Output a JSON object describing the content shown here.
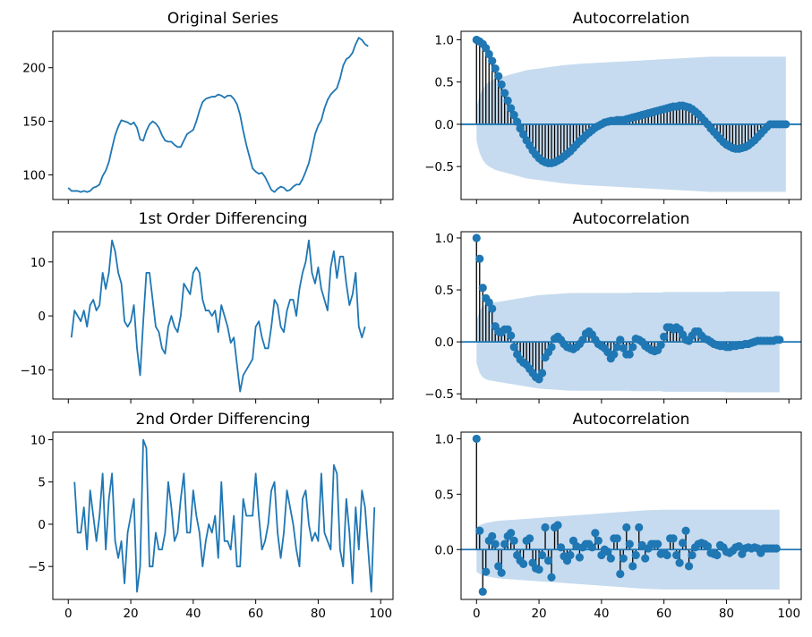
{
  "chart_data": [
    {
      "type": "line",
      "title": "Original Series",
      "xlabel": "",
      "ylabel": "",
      "xlim": [
        -4.95,
        103.95
      ],
      "ylim": [
        77,
        234
      ],
      "xticks": [
        0,
        20,
        40,
        60,
        80,
        100
      ],
      "show_xtick_labels": false,
      "yticks": [
        100,
        150,
        200
      ],
      "ytick_labels": [
        "100",
        "150",
        "200"
      ],
      "color": "#1f77b4",
      "x_start": 0,
      "values": [
        88,
        85,
        85,
        85,
        84,
        85,
        84,
        85,
        88,
        89,
        91,
        99,
        104,
        112,
        125,
        137,
        145,
        151,
        150,
        149,
        147,
        149,
        144,
        133,
        132,
        141,
        147,
        150,
        148,
        144,
        137,
        132,
        131,
        131,
        128,
        126,
        126,
        132,
        138,
        140,
        142,
        150,
        160,
        168,
        171,
        172,
        173,
        173,
        175,
        174,
        172,
        174,
        174,
        171,
        166,
        156,
        141,
        128,
        117,
        106,
        103,
        101,
        102,
        98,
        92,
        86,
        84,
        87,
        89,
        88,
        85,
        86,
        89,
        91,
        91,
        96,
        103,
        111,
        124,
        138,
        146,
        151,
        162,
        170,
        175,
        178,
        181,
        190,
        202,
        208,
        210,
        214,
        222,
        228,
        226,
        222,
        220
      ]
    },
    {
      "type": "stem",
      "title": "Autocorrelation",
      "xlabel": "",
      "ylabel": "",
      "xlim": [
        -4.95,
        103.95
      ],
      "ylim": [
        -0.89,
        1.1
      ],
      "xticks": [
        0,
        20,
        40,
        60,
        80,
        100
      ],
      "show_xtick_labels": false,
      "yticks": [
        -0.5,
        0.0,
        0.5,
        1.0
      ],
      "ytick_labels": [
        "−0.5",
        "0.0",
        "0.5",
        "1.0"
      ],
      "color": "#1f77b4",
      "band_color": "#c6dbef",
      "confidence_upper": [
        0.196,
        0.34,
        0.42,
        0.47,
        0.5,
        0.52,
        0.54,
        0.55,
        0.56,
        0.57,
        0.58,
        0.59,
        0.6,
        0.61,
        0.62,
        0.63,
        0.64,
        0.645,
        0.65,
        0.655,
        0.66,
        0.665,
        0.67,
        0.675,
        0.68,
        0.685,
        0.69,
        0.695,
        0.7,
        0.703,
        0.706,
        0.709,
        0.712,
        0.715,
        0.718,
        0.72,
        0.722,
        0.724,
        0.726,
        0.728,
        0.73,
        0.732,
        0.734,
        0.736,
        0.738,
        0.74,
        0.742,
        0.744,
        0.746,
        0.748,
        0.75,
        0.752,
        0.754,
        0.756,
        0.758,
        0.76,
        0.762,
        0.764,
        0.766,
        0.768,
        0.77,
        0.772,
        0.774,
        0.776,
        0.778,
        0.78,
        0.782,
        0.784,
        0.786,
        0.788,
        0.79,
        0.792,
        0.794,
        0.796,
        0.798,
        0.8,
        0.8,
        0.8,
        0.8,
        0.8,
        0.8,
        0.8,
        0.8,
        0.8,
        0.8,
        0.8,
        0.8,
        0.8,
        0.8,
        0.8,
        0.8,
        0.8,
        0.8,
        0.8,
        0.8,
        0.8,
        0.8,
        0.8,
        0.8,
        0.8
      ],
      "values": [
        1.0,
        0.98,
        0.95,
        0.9,
        0.83,
        0.75,
        0.66,
        0.57,
        0.47,
        0.37,
        0.28,
        0.19,
        0.11,
        0.03,
        -0.05,
        -0.12,
        -0.19,
        -0.25,
        -0.31,
        -0.36,
        -0.4,
        -0.43,
        -0.45,
        -0.46,
        -0.46,
        -0.45,
        -0.43,
        -0.41,
        -0.38,
        -0.35,
        -0.32,
        -0.28,
        -0.24,
        -0.2,
        -0.17,
        -0.13,
        -0.1,
        -0.07,
        -0.04,
        -0.02,
        0.0,
        0.02,
        0.03,
        0.04,
        0.04,
        0.05,
        0.05,
        0.05,
        0.06,
        0.07,
        0.08,
        0.09,
        0.1,
        0.11,
        0.12,
        0.13,
        0.14,
        0.15,
        0.16,
        0.17,
        0.18,
        0.19,
        0.2,
        0.21,
        0.21,
        0.22,
        0.22,
        0.21,
        0.2,
        0.18,
        0.15,
        0.12,
        0.08,
        0.04,
        0.0,
        -0.05,
        -0.09,
        -0.13,
        -0.17,
        -0.21,
        -0.24,
        -0.26,
        -0.28,
        -0.29,
        -0.29,
        -0.28,
        -0.27,
        -0.25,
        -0.22,
        -0.19,
        -0.15,
        -0.11,
        -0.07,
        -0.03,
        0.0,
        0.0,
        0.0,
        0.0,
        0.0,
        0.0
      ]
    },
    {
      "type": "line",
      "title": "1st Order Differencing",
      "xlabel": "",
      "ylabel": "",
      "xlim": [
        -4.95,
        103.95
      ],
      "ylim": [
        -15.4,
        15.6
      ],
      "xticks": [
        0,
        20,
        40,
        60,
        80,
        100
      ],
      "show_xtick_labels": false,
      "yticks": [
        -10,
        0,
        10
      ],
      "ytick_labels": [
        "−10",
        "0",
        "10"
      ],
      "color": "#1f77b4",
      "x_start": 1,
      "values": [
        -4,
        1,
        0,
        -1,
        1,
        -2,
        2,
        3,
        1,
        2,
        8,
        5,
        8,
        14,
        12,
        8,
        6,
        -1,
        -2,
        -1,
        2,
        -6,
        -11,
        -1,
        8,
        8,
        3,
        -2,
        -3,
        -6,
        -7,
        -2,
        0,
        -2,
        -3,
        0,
        6,
        5,
        4,
        8,
        9,
        8,
        3,
        1,
        1,
        0,
        1,
        -3,
        2,
        0,
        -2,
        -5,
        -4,
        -9,
        -14,
        -11,
        -10,
        -9,
        -8,
        -2,
        -1,
        -4,
        -6,
        -6,
        -2,
        3,
        2,
        -2,
        -3,
        1,
        3,
        3,
        0,
        5,
        8,
        10,
        14,
        8,
        6,
        9,
        5,
        3,
        1,
        9,
        12,
        7,
        11,
        11,
        6,
        2,
        4,
        8,
        -2,
        -4,
        -2
      ]
    },
    {
      "type": "stem",
      "title": "Autocorrelation",
      "xlabel": "",
      "ylabel": "",
      "xlim": [
        -4.95,
        103.95
      ],
      "ylim": [
        -0.55,
        1.06
      ],
      "xticks": [
        0,
        20,
        40,
        60,
        80,
        100
      ],
      "show_xtick_labels": false,
      "yticks": [
        -0.5,
        0.0,
        0.5,
        1.0
      ],
      "ytick_labels": [
        "−0.5",
        "0.0",
        "0.5",
        "1.0"
      ],
      "color": "#1f77b4",
      "band_color": "#c6dbef",
      "confidence_upper": [
        0.2,
        0.3,
        0.34,
        0.36,
        0.37,
        0.375,
        0.38,
        0.385,
        0.39,
        0.395,
        0.4,
        0.405,
        0.41,
        0.415,
        0.42,
        0.425,
        0.43,
        0.435,
        0.44,
        0.445,
        0.45,
        0.452,
        0.454,
        0.456,
        0.458,
        0.46,
        0.462,
        0.464,
        0.466,
        0.468,
        0.47,
        0.47,
        0.47,
        0.47,
        0.47,
        0.47,
        0.47,
        0.47,
        0.47,
        0.47,
        0.47,
        0.47,
        0.47,
        0.47,
        0.47,
        0.47,
        0.47,
        0.47,
        0.47,
        0.47,
        0.475,
        0.475,
        0.475,
        0.475,
        0.475,
        0.475,
        0.475,
        0.475,
        0.475,
        0.475,
        0.48,
        0.48,
        0.48,
        0.48,
        0.48,
        0.48,
        0.48,
        0.48,
        0.48,
        0.48,
        0.48,
        0.48,
        0.48,
        0.48,
        0.48,
        0.48,
        0.48,
        0.48,
        0.48,
        0.48,
        0.485,
        0.485,
        0.485,
        0.485,
        0.485,
        0.485,
        0.485,
        0.485,
        0.485,
        0.485,
        0.485,
        0.485,
        0.485,
        0.485,
        0.485,
        0.485,
        0.485,
        0.485
      ],
      "values": [
        1.0,
        0.8,
        0.52,
        0.42,
        0.38,
        0.32,
        0.15,
        0.1,
        0.09,
        0.12,
        0.12,
        0.06,
        -0.05,
        -0.12,
        -0.17,
        -0.2,
        -0.22,
        -0.26,
        -0.3,
        -0.34,
        -0.36,
        -0.3,
        -0.15,
        -0.1,
        -0.05,
        0.03,
        0.05,
        0.02,
        -0.02,
        -0.05,
        -0.06,
        -0.07,
        -0.05,
        -0.02,
        0.02,
        0.08,
        0.1,
        0.07,
        0.02,
        -0.02,
        -0.04,
        -0.06,
        -0.1,
        -0.16,
        -0.12,
        -0.05,
        0.02,
        -0.06,
        -0.12,
        -0.12,
        -0.05,
        0.03,
        0.02,
        0.0,
        -0.04,
        -0.06,
        -0.08,
        -0.09,
        -0.08,
        -0.03,
        0.05,
        0.14,
        0.14,
        0.12,
        0.14,
        0.12,
        0.07,
        0.02,
        0.01,
        0.06,
        0.1,
        0.1,
        0.06,
        0.03,
        0.02,
        0.0,
        -0.02,
        -0.03,
        -0.04,
        -0.04,
        -0.05,
        -0.05,
        -0.04,
        -0.04,
        -0.03,
        -0.03,
        -0.02,
        -0.02,
        -0.01,
        0.0,
        0.01,
        0.01,
        0.01,
        0.01,
        0.01,
        0.01,
        0.02,
        0.02
      ]
    },
    {
      "type": "line",
      "title": "2nd Order Differencing",
      "xlabel": "",
      "ylabel": "",
      "xlim": [
        -4.95,
        103.95
      ],
      "ylim": [
        -8.9,
        10.9
      ],
      "xticks": [
        0,
        20,
        40,
        60,
        80,
        100
      ],
      "show_xtick_labels": true,
      "xtick_labels": [
        "0",
        "20",
        "40",
        "60",
        "80",
        "100"
      ],
      "yticks": [
        -5,
        0,
        5,
        10
      ],
      "ytick_labels": [
        "−5",
        "0",
        "5",
        "10"
      ],
      "color": "#1f77b4",
      "x_start": 2,
      "values": [
        5,
        -1,
        -1,
        2,
        -3,
        4,
        1,
        -2,
        1,
        6,
        -3,
        3,
        6,
        -2,
        -4,
        -2,
        -7,
        -1,
        1,
        3,
        -8,
        -5,
        10,
        9,
        -5,
        -5,
        -1,
        -3,
        -3,
        -1,
        5,
        2,
        -2,
        -1,
        3,
        6,
        -1,
        -1,
        4,
        1,
        -1,
        -5,
        -2,
        0,
        -1,
        1,
        -4,
        5,
        -2,
        -2,
        -3,
        1,
        -5,
        -5,
        3,
        1,
        1,
        1,
        6,
        1,
        -3,
        -2,
        0,
        4,
        5,
        -1,
        -4,
        -1,
        4,
        2,
        0,
        -3,
        -5,
        3,
        4,
        0,
        -2,
        -1,
        -2,
        6,
        -1,
        -2,
        -3,
        7,
        6,
        -3,
        -5,
        3,
        -1,
        -7,
        2,
        -3,
        4,
        2,
        -3,
        -8,
        2
      ]
    },
    {
      "type": "stem",
      "title": "Autocorrelation",
      "xlabel": "",
      "ylabel": "",
      "xlim": [
        -4.95,
        103.95
      ],
      "ylim": [
        -0.45,
        1.06
      ],
      "xticks": [
        0,
        20,
        40,
        60,
        80,
        100
      ],
      "show_xtick_labels": true,
      "xtick_labels": [
        "0",
        "20",
        "40",
        "60",
        "80",
        "100"
      ],
      "yticks": [
        0.0,
        0.5,
        1.0
      ],
      "ytick_labels": [
        "0.0",
        "0.5",
        "1.0"
      ],
      "color": "#1f77b4",
      "band_color": "#c6dbef",
      "confidence_upper": [
        0.2,
        0.22,
        0.23,
        0.24,
        0.245,
        0.25,
        0.255,
        0.26,
        0.262,
        0.264,
        0.266,
        0.268,
        0.27,
        0.272,
        0.274,
        0.276,
        0.278,
        0.28,
        0.282,
        0.284,
        0.286,
        0.288,
        0.29,
        0.292,
        0.294,
        0.296,
        0.298,
        0.3,
        0.302,
        0.304,
        0.306,
        0.308,
        0.31,
        0.312,
        0.314,
        0.316,
        0.318,
        0.32,
        0.322,
        0.324,
        0.326,
        0.328,
        0.33,
        0.332,
        0.334,
        0.336,
        0.338,
        0.34,
        0.342,
        0.344,
        0.346,
        0.348,
        0.35,
        0.352,
        0.354,
        0.355,
        0.356,
        0.357,
        0.358,
        0.359,
        0.36,
        0.36,
        0.36,
        0.36,
        0.36,
        0.36,
        0.36,
        0.36,
        0.36,
        0.36,
        0.36,
        0.36,
        0.36,
        0.36,
        0.36,
        0.36,
        0.36,
        0.36,
        0.36,
        0.36,
        0.36,
        0.36,
        0.36,
        0.36,
        0.36,
        0.36,
        0.36,
        0.36,
        0.36,
        0.36,
        0.36,
        0.36,
        0.36,
        0.36,
        0.36,
        0.36,
        0.36,
        0.36
      ],
      "values": [
        1.0,
        0.17,
        -0.38,
        -0.2,
        0.08,
        0.12,
        0.05,
        -0.15,
        -0.21,
        0.05,
        0.12,
        0.15,
        0.08,
        -0.05,
        -0.1,
        -0.13,
        0.08,
        0.1,
        -0.12,
        -0.17,
        -0.18,
        -0.05,
        0.2,
        -0.1,
        -0.25,
        0.2,
        0.22,
        0.02,
        -0.06,
        -0.1,
        -0.05,
        0.08,
        0.03,
        -0.07,
        0.02,
        0.05,
        0.05,
        0.02,
        0.15,
        0.08,
        -0.05,
        0.0,
        -0.02,
        -0.08,
        0.1,
        0.1,
        -0.22,
        -0.08,
        0.2,
        0.05,
        -0.15,
        -0.05,
        0.2,
        0.04,
        -0.08,
        0.01,
        0.05,
        0.05,
        0.05,
        -0.04,
        -0.03,
        -0.05,
        0.1,
        0.1,
        -0.05,
        -0.12,
        0.06,
        0.17,
        -0.15,
        -0.05,
        0.02,
        0.05,
        0.06,
        0.05,
        0.03,
        -0.03,
        -0.04,
        -0.05,
        0.04,
        0.02,
        -0.02,
        -0.03,
        -0.01,
        0.02,
        0.03,
        -0.04,
        0.01,
        0.02,
        0.01,
        0.02,
        0.01,
        -0.03,
        0.01,
        0.01,
        0.01,
        0.01,
        0.01
      ]
    }
  ]
}
